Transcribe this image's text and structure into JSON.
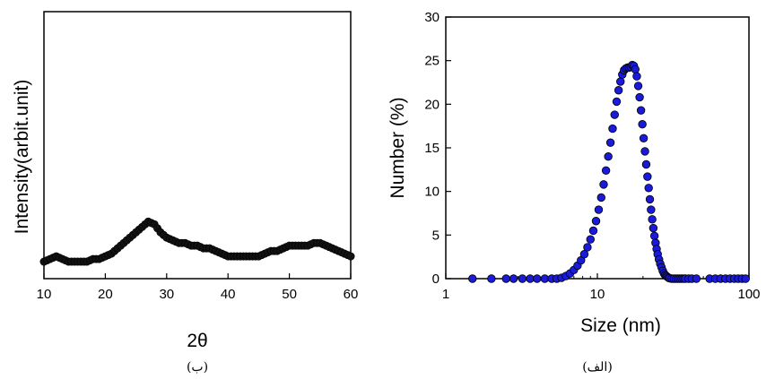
{
  "chart_data": [
    {
      "type": "scatter",
      "panel_caption": "(ب)",
      "xlabel": "2θ",
      "ylabel": "Intensity(arbit.unit)",
      "xlim": [
        10,
        60
      ],
      "ylim": [
        0,
        1
      ],
      "x_ticks": [
        "10",
        "20",
        "30",
        "40",
        "50",
        "60"
      ],
      "y_ticks": [],
      "grid": false,
      "legend": "none",
      "marker_color": "#111111",
      "series": [
        {
          "x": [
            10,
            11,
            12,
            13,
            14,
            15,
            16,
            17,
            18,
            19,
            20,
            21,
            22,
            23,
            24,
            25,
            26,
            27,
            28,
            29,
            30,
            31,
            32,
            33,
            34,
            35,
            36,
            37,
            38,
            39,
            40,
            41,
            42,
            43,
            44,
            45,
            46,
            47,
            48,
            49,
            50,
            51,
            52,
            53,
            54,
            55,
            56,
            57,
            58,
            59,
            60
          ],
          "y": [
            0.03,
            0.04,
            0.05,
            0.04,
            0.03,
            0.03,
            0.03,
            0.03,
            0.04,
            0.04,
            0.05,
            0.06,
            0.08,
            0.1,
            0.12,
            0.14,
            0.16,
            0.18,
            0.17,
            0.14,
            0.12,
            0.11,
            0.1,
            0.1,
            0.09,
            0.09,
            0.08,
            0.08,
            0.07,
            0.06,
            0.05,
            0.05,
            0.05,
            0.05,
            0.05,
            0.05,
            0.06,
            0.07,
            0.07,
            0.08,
            0.09,
            0.09,
            0.09,
            0.09,
            0.1,
            0.1,
            0.09,
            0.08,
            0.07,
            0.06,
            0.05
          ]
        }
      ]
    },
    {
      "type": "scatter",
      "panel_caption": "(الف)",
      "xlabel": "Size (nm)",
      "ylabel": "Number (%)",
      "x_scale": "log",
      "xlim": [
        1,
        100
      ],
      "ylim": [
        0,
        30
      ],
      "x_ticks": [
        "1",
        "10",
        "100"
      ],
      "y_ticks": [
        "0",
        "5",
        "10",
        "15",
        "20",
        "25",
        "30"
      ],
      "grid": false,
      "legend": "none",
      "marker_color": "#1a1adb",
      "series": [
        {
          "x": [
            1.5,
            2.0,
            2.5,
            2.8,
            3.2,
            3.6,
            4.0,
            4.5,
            5.0,
            5.4,
            5.8,
            6.2,
            6.6,
            7.0,
            7.4,
            7.8,
            8.2,
            8.6,
            9.0,
            9.4,
            9.8,
            10.2,
            10.6,
            11.0,
            11.4,
            11.8,
            12.2,
            12.6,
            13.0,
            13.4,
            13.8,
            14.2,
            14.6,
            15.0,
            15.4,
            15.8,
            16.2,
            16.6,
            17.0,
            17.4,
            17.8,
            18.2,
            18.6,
            19.0,
            19.4,
            19.8,
            20.2,
            20.6,
            21.0,
            21.4,
            21.8,
            22.2,
            22.6,
            23.0,
            23.4,
            23.8,
            24.2,
            24.6,
            25.0,
            25.5,
            26.0,
            26.5,
            27.0,
            27.5,
            28.0,
            28.5,
            29.0,
            29.5,
            30.0,
            31.0,
            32.0,
            33.0,
            34.0,
            35.0,
            36.0,
            37.0,
            38.0,
            40.0,
            42.0,
            45.0,
            55.0,
            60.0,
            65.0,
            70.0,
            75.0,
            80.0,
            85.0,
            90.0,
            95.0
          ],
          "y": [
            0,
            0,
            0,
            0,
            0,
            0,
            0,
            0,
            0,
            0,
            0.1,
            0.3,
            0.6,
            1.0,
            1.5,
            2.1,
            2.8,
            3.6,
            4.5,
            5.5,
            6.6,
            7.9,
            9.3,
            10.8,
            12.4,
            14.0,
            15.6,
            17.2,
            18.8,
            20.3,
            21.6,
            22.6,
            23.4,
            23.9,
            24.1,
            24.2,
            24.2,
            24.3,
            24.5,
            24.4,
            24.0,
            23.2,
            22.1,
            20.8,
            19.3,
            17.7,
            16.1,
            14.6,
            13.1,
            11.7,
            10.4,
            9.1,
            7.9,
            6.8,
            5.8,
            4.9,
            4.1,
            3.4,
            2.8,
            2.2,
            1.7,
            1.3,
            0.9,
            0.6,
            0.4,
            0.3,
            0.2,
            0.1,
            0.05,
            0,
            0,
            0,
            0,
            0,
            0,
            0,
            0,
            0,
            0,
            0,
            0,
            0,
            0,
            0,
            0,
            0,
            0,
            0,
            0
          ]
        }
      ]
    }
  ]
}
